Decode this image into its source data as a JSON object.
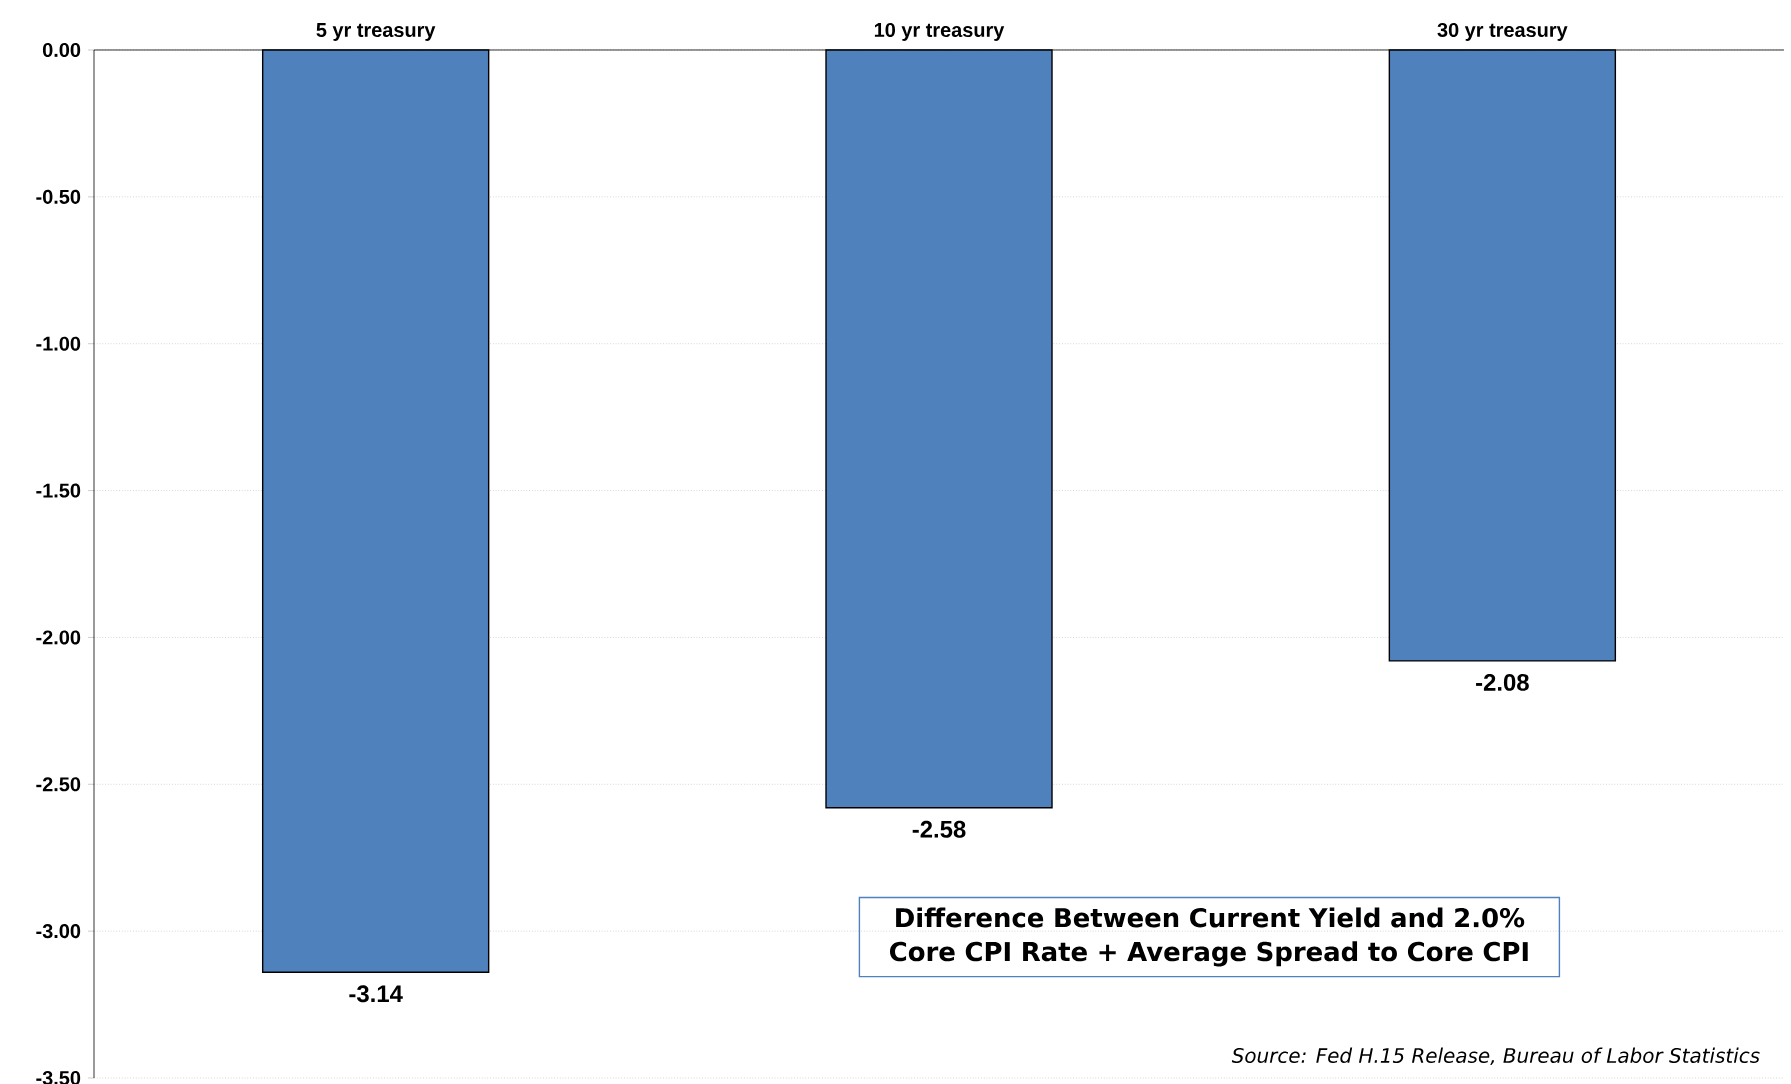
{
  "chart_data": {
    "type": "bar",
    "categories": [
      "5 yr treasury",
      "10 yr treasury",
      "30 yr treasury"
    ],
    "values": [
      -3.14,
      -2.58,
      -2.08
    ],
    "color": "#4f81bd",
    "ylim": [
      -3.5,
      0
    ],
    "yticks": [
      {
        "value": 0,
        "label": "0.00"
      },
      {
        "value": -0.5,
        "label": "-0.50"
      },
      {
        "value": -1,
        "label": "-1.00"
      },
      {
        "value": -1.5,
        "label": "-1.50"
      },
      {
        "value": -2,
        "label": "-2.00"
      },
      {
        "value": -2.5,
        "label": "-2.50"
      },
      {
        "value": -3,
        "label": "-3.00"
      },
      {
        "value": -3.5,
        "label": "-3.50"
      }
    ],
    "grid": "y",
    "data_labels": true,
    "annotations": [
      "Difference Between Current Yield and 2.0% Core CPI Rate + Average Spread to Core CPI",
      "Source: Fed H.15 Release, Bureau of Labor Statistics"
    ]
  }
}
